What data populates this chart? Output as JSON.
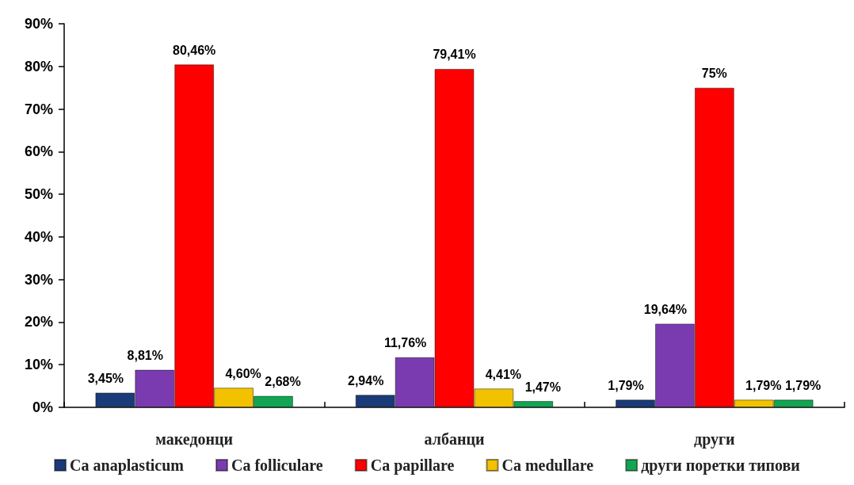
{
  "chart_data": {
    "type": "bar",
    "categories": [
      "македонци",
      "албанци",
      "други"
    ],
    "series": [
      {
        "name": "Ca anaplasticum",
        "color": "#1b3a78",
        "values": [
          3.45,
          2.94,
          1.79
        ],
        "value_labels": [
          "3,45%",
          "2,94%",
          "1,79%"
        ]
      },
      {
        "name": "Ca folliculare",
        "color": "#7a3bb0",
        "values": [
          8.81,
          11.76,
          19.64
        ],
        "value_labels": [
          "8,81%",
          "11,76%",
          "19,64%"
        ]
      },
      {
        "name": "Ca papillare",
        "color": "#ff0000",
        "values": [
          80.46,
          79.41,
          75
        ],
        "value_labels": [
          "80,46%",
          "79,41%",
          "75%"
        ]
      },
      {
        "name": "Ca medullare",
        "color": "#f2c200",
        "values": [
          4.6,
          4.41,
          1.79
        ],
        "value_labels": [
          "4,60%",
          "4,41%",
          "1,79%"
        ]
      },
      {
        "name": "други поретки типови",
        "color": "#13a552",
        "values": [
          2.68,
          1.47,
          1.79
        ],
        "value_labels": [
          "2,68%",
          "1,47%",
          "1,79%"
        ]
      }
    ],
    "ylim": [
      0,
      90
    ],
    "yticks": [
      {
        "value": 0,
        "label": "0%"
      },
      {
        "value": 10,
        "label": "10%"
      },
      {
        "value": 20,
        "label": "20%"
      },
      {
        "value": 30,
        "label": "30%"
      },
      {
        "value": 40,
        "label": "40%"
      },
      {
        "value": 50,
        "label": "50%"
      },
      {
        "value": 60,
        "label": "60%"
      },
      {
        "value": 70,
        "label": "70%"
      },
      {
        "value": 80,
        "label": "80%"
      },
      {
        "value": 90,
        "label": "90%"
      }
    ],
    "grid": false,
    "legend": "bottom"
  }
}
